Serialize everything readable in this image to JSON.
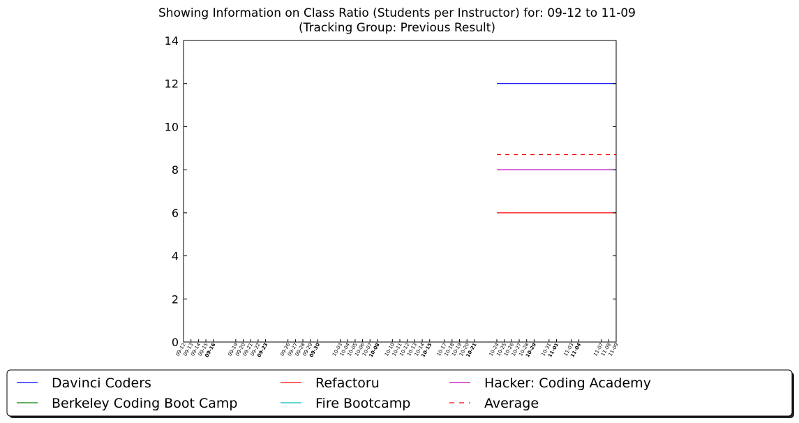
{
  "chart_data": {
    "type": "line",
    "title": "Showing Information on Class Ratio (Students per Instructor) for: 09-12 to 11-09",
    "subtitle": "(Tracking Group: Previous Result)",
    "ylim": [
      0,
      14
    ],
    "yticks": [
      0,
      2,
      4,
      6,
      8,
      10,
      12,
      14
    ],
    "x_dates": [
      "09-12",
      "09-13",
      "09-14",
      "09-15",
      "09-16",
      "09-19",
      "09-20",
      "09-21",
      "09-22",
      "09-23",
      "09-26",
      "09-27",
      "09-28",
      "09-29",
      "09-30",
      "10-03",
      "10-04",
      "10-05",
      "10-06",
      "10-07",
      "10-08",
      "10-10",
      "10-11",
      "10-12",
      "10-13",
      "10-14",
      "10-15",
      "10-17",
      "10-18",
      "10-19",
      "10-20",
      "10-21",
      "10-24",
      "10-25",
      "10-26",
      "10-27",
      "10-28",
      "10-29",
      "10-31",
      "11-01",
      "11-03",
      "11-04",
      "11-07",
      "11-08",
      "11-09"
    ],
    "bold_ticks": [
      "09-16",
      "09-23",
      "09-30",
      "10-08",
      "10-15",
      "10-21",
      "10-29",
      "11-01",
      "11-04"
    ],
    "series": [
      {
        "name": "Davinci Coders",
        "color": "#0000ff",
        "dash": false,
        "points": [
          [
            "10-24",
            12
          ],
          [
            "11-09",
            12
          ]
        ]
      },
      {
        "name": "Berkeley Coding Boot Camp",
        "color": "#008000",
        "dash": false,
        "points": []
      },
      {
        "name": "Refactoru",
        "color": "#ff0000",
        "dash": false,
        "points": [
          [
            "10-24",
            6
          ],
          [
            "11-09",
            6
          ]
        ]
      },
      {
        "name": "Fire Bootcamp",
        "color": "#00bfbf",
        "dash": false,
        "points": []
      },
      {
        "name": "Hacker: Coding Academy",
        "color": "#bf00bf",
        "dash": false,
        "points": [
          [
            "10-24",
            8
          ],
          [
            "11-09",
            8
          ]
        ]
      },
      {
        "name": "Average",
        "color": "#ff0000",
        "dash": true,
        "points": [
          [
            "10-24",
            8.7
          ],
          [
            "11-09",
            8.7
          ]
        ]
      }
    ],
    "legend_placement": "bottom",
    "grid": false
  }
}
